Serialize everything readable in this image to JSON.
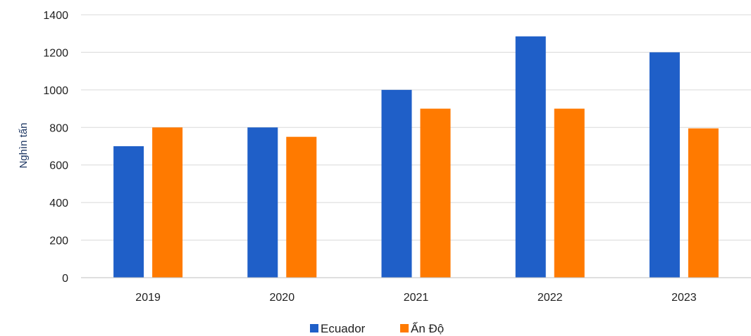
{
  "chart_data": {
    "type": "bar",
    "title": "",
    "xlabel": "",
    "ylabel": "Nghìn tấn",
    "categories": [
      "2019",
      "2020",
      "2021",
      "2022",
      "2023"
    ],
    "series": [
      {
        "name": "Ecuador",
        "color": "#1f5fc8",
        "values": [
          700,
          800,
          1000,
          1285,
          1200
        ]
      },
      {
        "name": "Ấn Độ",
        "color": "#ff7a00",
        "values": [
          800,
          750,
          900,
          900,
          795
        ]
      }
    ],
    "ylim": [
      0,
      1400
    ],
    "yticks": [
      0,
      200,
      400,
      600,
      800,
      1000,
      1200,
      1400
    ],
    "grid": true,
    "legend_position": "bottom"
  }
}
